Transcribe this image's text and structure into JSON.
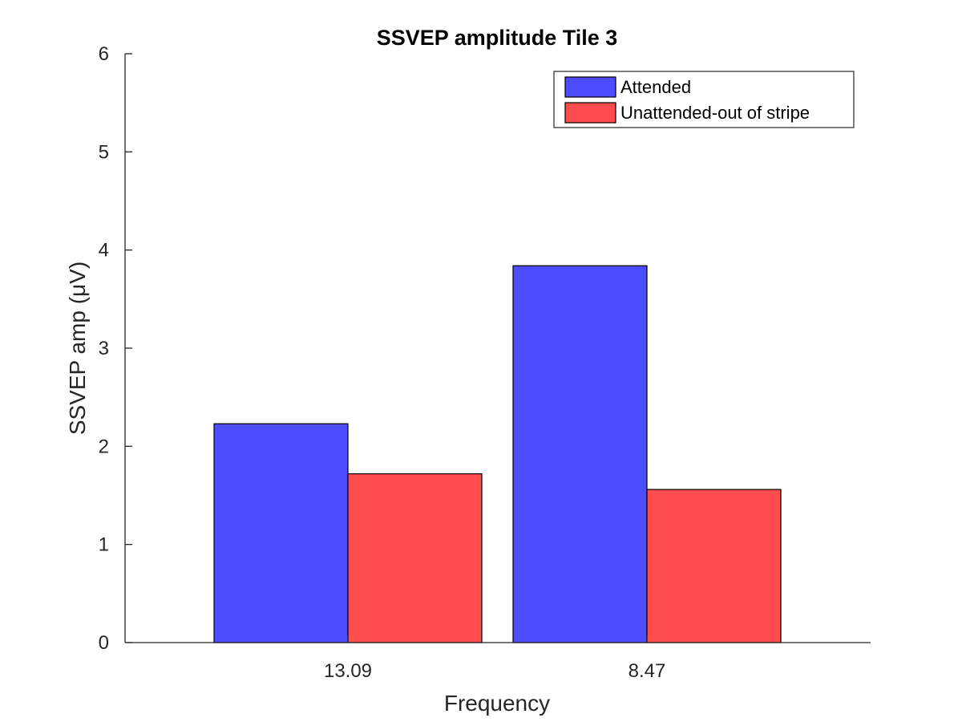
{
  "chart_data": {
    "type": "bar",
    "title": "SSVEP amplitude Tile 3",
    "xlabel": "Frequency",
    "ylabel": "SSVEP amp (μV)",
    "categories": [
      "13.09",
      "8.47"
    ],
    "series": [
      {
        "name": "Attended",
        "values": [
          2.23,
          3.84
        ],
        "color": "#4d4dff"
      },
      {
        "name": "Unattended-out of stripe",
        "values": [
          1.72,
          1.56
        ],
        "color": "#ff4d4d"
      }
    ],
    "ylim": [
      0,
      6
    ],
    "yticks": [
      0,
      1,
      2,
      3,
      4,
      5,
      6
    ],
    "ytick_labels": [
      "0",
      "1",
      "2",
      "3",
      "4",
      "5",
      "6"
    ],
    "grid": false,
    "legend_position": "top-right"
  }
}
